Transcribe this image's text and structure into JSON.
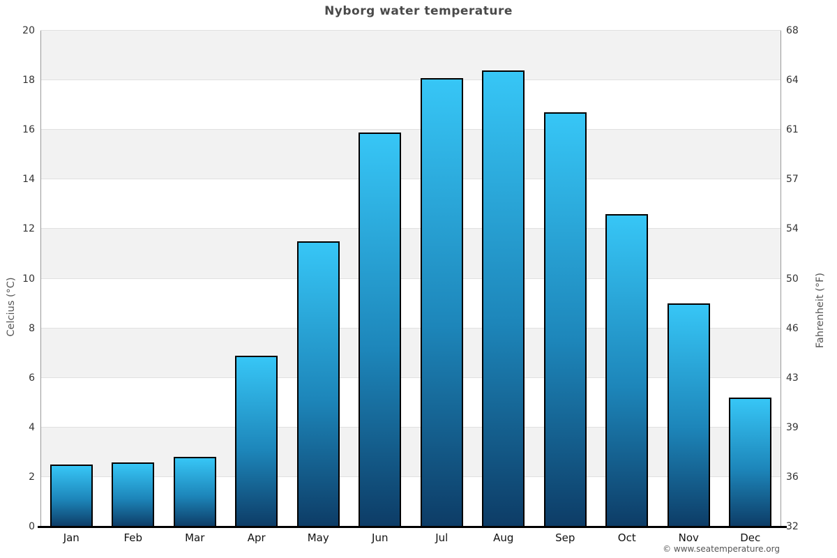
{
  "title": "Nyborg water temperature",
  "footer": {
    "credit": "© www.seatemperature.org"
  },
  "chart_data": {
    "type": "bar",
    "title": "Nyborg water temperature",
    "categories": [
      "Jan",
      "Feb",
      "Mar",
      "Apr",
      "May",
      "Jun",
      "Jul",
      "Aug",
      "Sep",
      "Oct",
      "Nov",
      "Dec"
    ],
    "values": [
      2.5,
      2.6,
      2.8,
      6.9,
      11.5,
      15.9,
      18.1,
      18.4,
      16.7,
      12.6,
      9.0,
      5.2
    ],
    "series_name": "Water temperature (°C)",
    "xlabel": "",
    "ylabel_left": "Celcius (°C)",
    "ylabel_right": "Fahrenheit (°F)",
    "ylim_left": [
      0,
      20
    ],
    "yticks_left": [
      0,
      2,
      4,
      6,
      8,
      10,
      12,
      14,
      16,
      18,
      20
    ],
    "yticks_right_labels": [
      "32",
      "36",
      "39",
      "43",
      "46",
      "50",
      "54",
      "57",
      "61",
      "64",
      "68"
    ],
    "legend": "none",
    "grid": "alternating horizontal bands every 2°C with light gridlines",
    "colors": {
      "bar_gradient_top": "#37c6f6",
      "bar_gradient_bottom": "#0d3c66",
      "bar_border": "#000000",
      "band_gray": "#f2f2f2",
      "band_white": "#ffffff",
      "gridline": "#e0e0e0",
      "side_axis_line": "#999999",
      "bottom_axis_line": "#000000",
      "title_text": "#4a4a4a",
      "tick_text": "#333333",
      "month_text": "#111111",
      "credit_text": "#555555"
    }
  }
}
